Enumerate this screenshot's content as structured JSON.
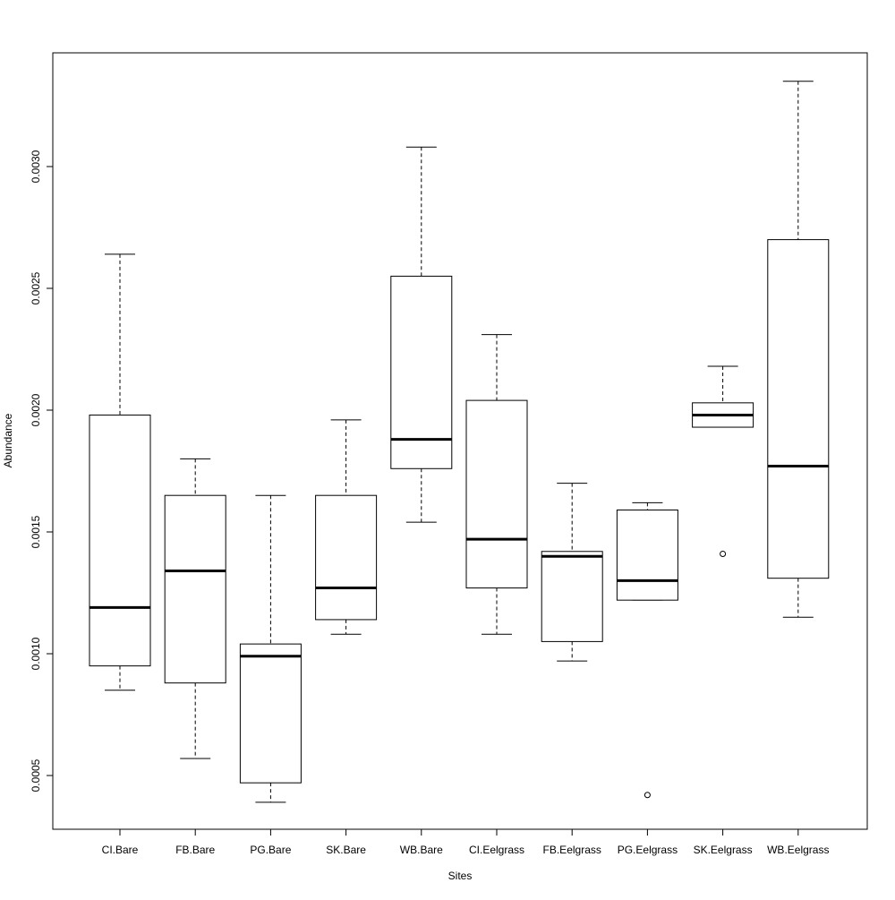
{
  "chart_data": {
    "type": "boxplot",
    "title": "",
    "xlabel": "Sites",
    "ylabel": "Abundance",
    "ylim": [
      0.0004,
      0.0034
    ],
    "y_ticks": [
      0.0005,
      0.001,
      0.0015,
      0.002,
      0.0025,
      0.003
    ],
    "y_tick_labels": [
      "0.0005",
      "0.0010",
      "0.0015",
      "0.0020",
      "0.0025",
      "0.0030"
    ],
    "grid": false,
    "legend": "none",
    "categories": [
      "CI.Bare",
      "FB.Bare",
      "PG.Bare",
      "SK.Bare",
      "WB.Bare",
      "CI.Eelgrass",
      "FB.Eelgrass",
      "PG.Eelgrass",
      "SK.Eelgrass",
      "WB.Eelgrass"
    ],
    "boxes": [
      {
        "category": "CI.Bare",
        "min": 0.00085,
        "q1": 0.00095,
        "median": 0.00119,
        "q3": 0.00198,
        "max": 0.00264,
        "outliers": []
      },
      {
        "category": "FB.Bare",
        "min": 0.00057,
        "q1": 0.00088,
        "median": 0.00134,
        "q3": 0.00165,
        "max": 0.0018,
        "outliers": []
      },
      {
        "category": "PG.Bare",
        "min": 0.00039,
        "q1": 0.00047,
        "median": 0.00099,
        "q3": 0.00104,
        "max": 0.00165,
        "outliers": []
      },
      {
        "category": "SK.Bare",
        "min": 0.00108,
        "q1": 0.00114,
        "median": 0.00127,
        "q3": 0.00165,
        "max": 0.00196,
        "outliers": []
      },
      {
        "category": "WB.Bare",
        "min": 0.00154,
        "q1": 0.00176,
        "median": 0.00188,
        "q3": 0.00255,
        "max": 0.00308,
        "outliers": []
      },
      {
        "category": "CI.Eelgrass",
        "min": 0.00108,
        "q1": 0.00127,
        "median": 0.00147,
        "q3": 0.00204,
        "max": 0.00231,
        "outliers": []
      },
      {
        "category": "FB.Eelgrass",
        "min": 0.00097,
        "q1": 0.00105,
        "median": 0.0014,
        "q3": 0.00142,
        "max": 0.0017,
        "outliers": []
      },
      {
        "category": "PG.Eelgrass",
        "min": 0.00122,
        "q1": 0.00122,
        "median": 0.0013,
        "q3": 0.00159,
        "max": 0.00162,
        "outliers": [
          0.00042
        ]
      },
      {
        "category": "SK.Eelgrass",
        "min": 0.00193,
        "q1": 0.00193,
        "median": 0.00198,
        "q3": 0.00203,
        "max": 0.00218,
        "outliers": [
          0.00141
        ]
      },
      {
        "category": "WB.Eelgrass",
        "min": 0.00115,
        "q1": 0.00131,
        "median": 0.00177,
        "q3": 0.0027,
        "max": 0.00335,
        "outliers": []
      }
    ]
  }
}
